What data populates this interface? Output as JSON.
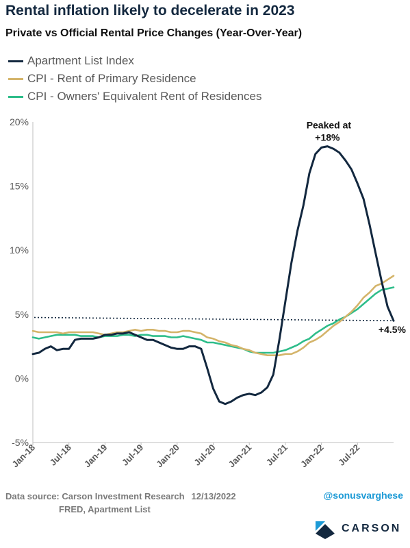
{
  "header": {
    "title": "Rental inflation likely to decelerate in 2023",
    "subtitle": "Private vs Official Rental Price Changes (Year-Over-Year)"
  },
  "colors": {
    "apartment_list": "#13283f",
    "cpi_rent": "#d4b46a",
    "cpi_oer": "#2ebd8a",
    "reference_line": "#13283f"
  },
  "footer": {
    "source_line1": "Data source: Carson Investment Research",
    "date": "12/13/2022",
    "source_line2": "FRED, Apartment List",
    "handle": "@sonusvarghese",
    "logo_text": "CARSON"
  },
  "chart_data": {
    "type": "line",
    "title": "Rental inflation likely to decelerate in 2023",
    "subtitle": "Private vs Official Rental Price Changes (Year-Over-Year)",
    "xlabel": "",
    "ylabel": "",
    "ylim": [
      -5,
      20
    ],
    "y_ticks": [
      "-5%",
      "0%",
      "5%",
      "10%",
      "15%",
      "20%"
    ],
    "x_ticks": [
      "Jan-18",
      "Jul-18",
      "Jan-19",
      "Jul-19",
      "Jan-20",
      "Jul-20",
      "Jan-21",
      "Jul-21",
      "Jan-22",
      "Jul-22"
    ],
    "x_start": "Jan-18",
    "x_end": "Nov-22",
    "grid": false,
    "legend_position": "top-left",
    "series": [
      {
        "name": "Apartment List Index",
        "values": [
          1.9,
          2.0,
          2.3,
          2.5,
          2.2,
          2.3,
          2.3,
          3.0,
          3.1,
          3.1,
          3.1,
          3.2,
          3.4,
          3.4,
          3.5,
          3.5,
          3.6,
          3.4,
          3.2,
          3.0,
          3.0,
          2.8,
          2.6,
          2.4,
          2.3,
          2.3,
          2.5,
          2.5,
          2.3,
          0.8,
          -0.8,
          -1.8,
          -2.0,
          -1.8,
          -1.5,
          -1.3,
          -1.2,
          -1.3,
          -1.1,
          -0.7,
          0.3,
          3.0,
          6.0,
          9.0,
          11.5,
          13.5,
          16.0,
          17.5,
          18.0,
          18.1,
          17.9,
          17.6,
          17.0,
          16.3,
          15.2,
          14.0,
          12.0,
          9.8,
          7.6,
          5.6,
          4.5
        ]
      },
      {
        "name": "CPI - Rent of Primary Residence",
        "values": [
          3.7,
          3.6,
          3.6,
          3.6,
          3.6,
          3.5,
          3.6,
          3.6,
          3.6,
          3.6,
          3.6,
          3.5,
          3.4,
          3.5,
          3.6,
          3.6,
          3.7,
          3.8,
          3.7,
          3.8,
          3.8,
          3.7,
          3.7,
          3.6,
          3.6,
          3.7,
          3.7,
          3.6,
          3.5,
          3.2,
          3.1,
          2.9,
          2.8,
          2.6,
          2.5,
          2.3,
          2.2,
          2.0,
          1.9,
          1.8,
          1.8,
          1.8,
          1.9,
          1.9,
          2.1,
          2.4,
          2.8,
          3.0,
          3.3,
          3.7,
          4.1,
          4.4,
          4.8,
          5.2,
          5.7,
          6.3,
          6.7,
          7.2,
          7.4,
          7.7,
          8.0
        ]
      },
      {
        "name": "CPI - Owners' Equivalent Rent of Residences",
        "values": [
          3.2,
          3.1,
          3.2,
          3.3,
          3.4,
          3.4,
          3.4,
          3.4,
          3.3,
          3.3,
          3.3,
          3.2,
          3.3,
          3.3,
          3.3,
          3.4,
          3.4,
          3.3,
          3.4,
          3.4,
          3.3,
          3.3,
          3.3,
          3.2,
          3.2,
          3.3,
          3.2,
          3.1,
          3.0,
          2.8,
          2.8,
          2.7,
          2.6,
          2.5,
          2.4,
          2.3,
          2.1,
          2.0,
          2.0,
          2.0,
          2.0,
          2.1,
          2.2,
          2.4,
          2.6,
          2.9,
          3.1,
          3.5,
          3.8,
          4.1,
          4.3,
          4.6,
          4.8,
          5.1,
          5.4,
          5.8,
          6.2,
          6.6,
          6.9,
          7.0,
          7.1
        ]
      }
    ],
    "reference_line": {
      "start_value": 4.75,
      "end_value": 4.5,
      "style": "dotted"
    },
    "annotations": [
      {
        "text_line1": "Peaked at",
        "text_line2": "+18%"
      },
      {
        "text": "+4.5%"
      }
    ]
  }
}
